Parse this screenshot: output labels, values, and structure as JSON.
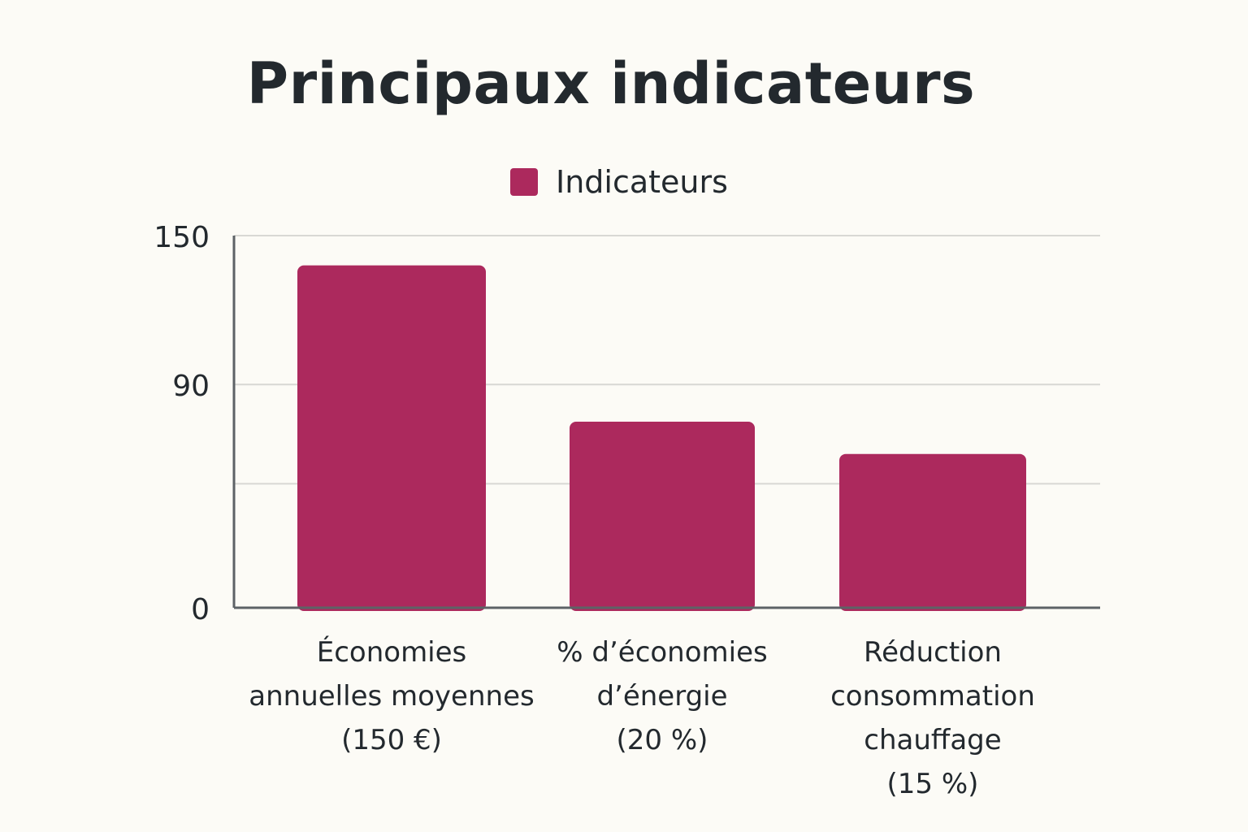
{
  "chart_data": {
    "type": "bar",
    "title": "Principaux indicateurs",
    "legend": {
      "placement": "top-center"
    },
    "series": [
      {
        "name": "Indicateurs",
        "color": "#ac295d",
        "values": [
          138,
          75,
          62
        ]
      }
    ],
    "categories": [
      [
        "Économies",
        "annuelles moyennes",
        "(150 €)"
      ],
      [
        "% d’économies",
        "d’énergie",
        "(20 %)"
      ],
      [
        "Réduction",
        "consommation",
        "chauffage",
        "(15 %)"
      ]
    ],
    "yticks": [
      {
        "value": 150,
        "label": "150"
      },
      {
        "value": 90,
        "label": "90"
      },
      {
        "value": 0,
        "label": "0"
      }
    ],
    "gridlines": [
      150,
      90,
      50
    ],
    "ylim": [
      0,
      150
    ],
    "grid": true
  }
}
